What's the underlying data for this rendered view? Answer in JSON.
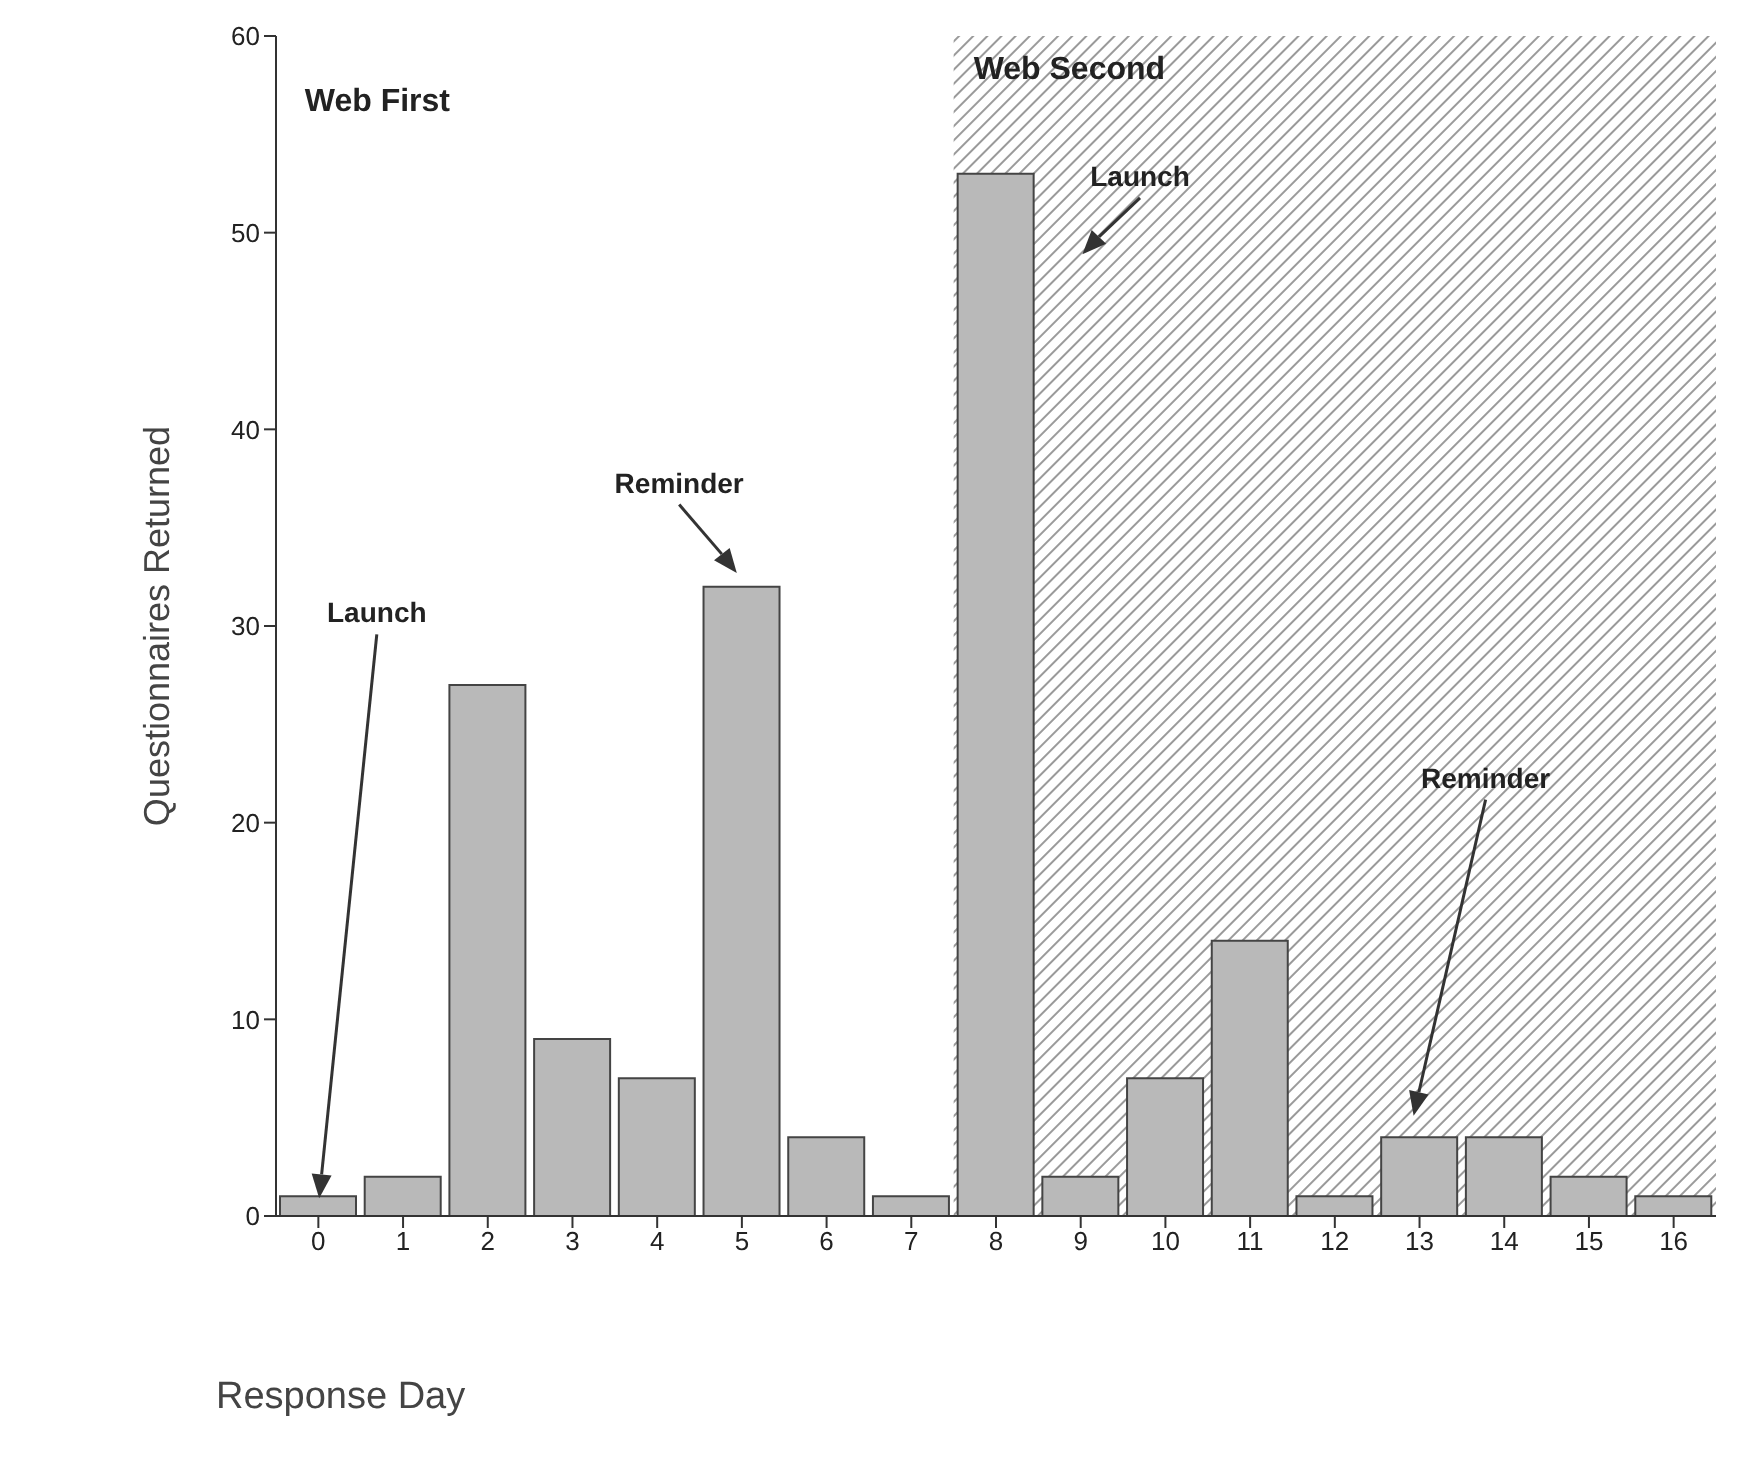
{
  "chart_data": {
    "type": "bar",
    "xlabel": "Response Day",
    "ylabel": "Questionnaires Returned",
    "x": [
      0,
      1,
      2,
      3,
      4,
      5,
      6,
      7,
      8,
      9,
      10,
      11,
      12,
      13,
      14,
      15,
      16
    ],
    "values": [
      1,
      2,
      27,
      9,
      7,
      32,
      4,
      1,
      53,
      2,
      7,
      14,
      1,
      4,
      4,
      2,
      1
    ],
    "color": "#b9b9b9",
    "xlim": [
      -0.5,
      16.5
    ],
    "xticks": [
      0,
      1,
      2,
      3,
      4,
      5,
      6,
      7,
      8,
      9,
      10,
      11,
      12,
      13,
      14,
      15,
      16
    ],
    "ylim": [
      0,
      60
    ],
    "yticks": [
      0,
      10,
      20,
      30,
      40,
      50,
      60
    ],
    "bands": [
      {
        "axis": "x",
        "from": 7.5,
        "to": 16.5,
        "label": "Web Second",
        "color": "#9a9a9a"
      }
    ],
    "annotations": [
      "Web First",
      "Launch",
      "Reminder",
      "Launch",
      "Reminder"
    ]
  }
}
